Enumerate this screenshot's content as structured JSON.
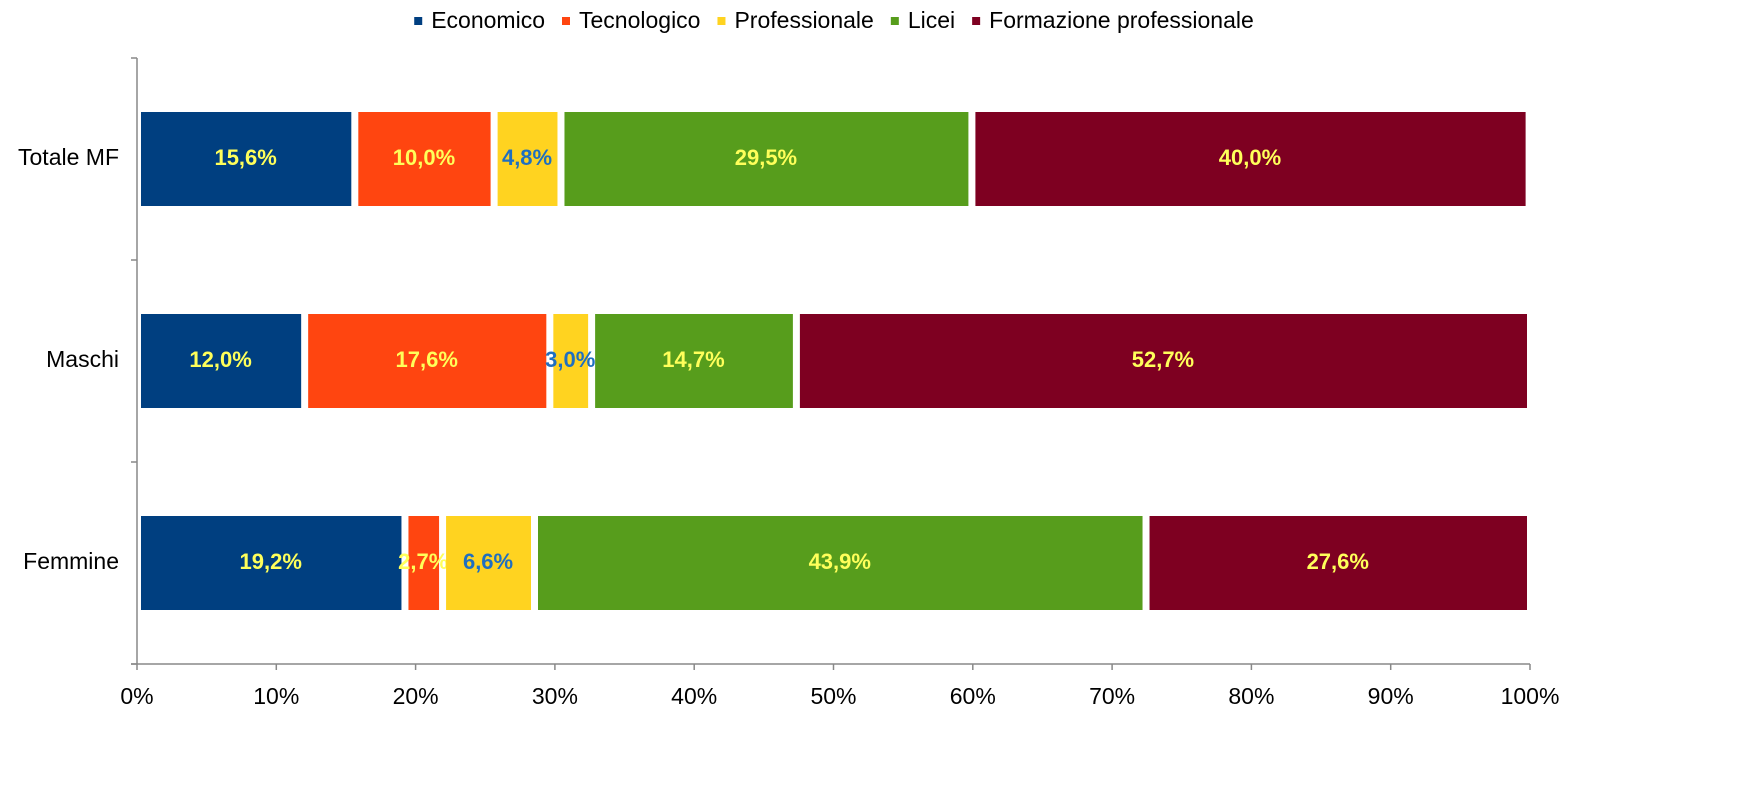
{
  "chart_data": {
    "type": "stacked_barh",
    "categories": [
      "Totale MF",
      "Maschi",
      "Femmine"
    ],
    "series": [
      {
        "name": "Economico",
        "color": "#003f80",
        "label_color": "#ffff5a",
        "values": [
          15.6,
          12.0,
          19.2
        ],
        "value_labels": [
          "15,6%",
          "12,0%",
          "19,2%"
        ]
      },
      {
        "name": "Tecnologico",
        "color": "#ff4510",
        "label_color": "#ffff5a",
        "values": [
          10.0,
          17.6,
          2.7
        ],
        "value_labels": [
          "10,0%",
          "17,6%",
          "2,7%"
        ]
      },
      {
        "name": "Professionale",
        "color": "#ffd320",
        "label_color": "#1f6fc0",
        "values": [
          4.8,
          3.0,
          6.6
        ],
        "value_labels": [
          "4,8%",
          "3,0%",
          "6,6%"
        ]
      },
      {
        "name": "Licei",
        "color": "#579d1c",
        "label_color": "#ffff5a",
        "values": [
          29.5,
          14.7,
          43.9
        ],
        "value_labels": [
          "29,5%",
          "14,7%",
          "43,9%"
        ]
      },
      {
        "name": "Formazione professionale",
        "color": "#7e0021",
        "label_color": "#ffff5a",
        "values": [
          40.0,
          52.7,
          27.6
        ],
        "value_labels": [
          "40,0%",
          "52,7%",
          "27,6%"
        ]
      }
    ],
    "xlim": [
      0,
      100
    ],
    "xticks": [
      {
        "value": 0,
        "label": "0%"
      },
      {
        "value": 10,
        "label": "10%"
      },
      {
        "value": 20,
        "label": "20%"
      },
      {
        "value": 30,
        "label": "30%"
      },
      {
        "value": 40,
        "label": "40%"
      },
      {
        "value": 50,
        "label": "50%"
      },
      {
        "value": 60,
        "label": "60%"
      },
      {
        "value": 70,
        "label": "70%"
      },
      {
        "value": 80,
        "label": "80%"
      },
      {
        "value": 90,
        "label": "90%"
      },
      {
        "value": 100,
        "label": "100%"
      }
    ],
    "legend": "top"
  }
}
